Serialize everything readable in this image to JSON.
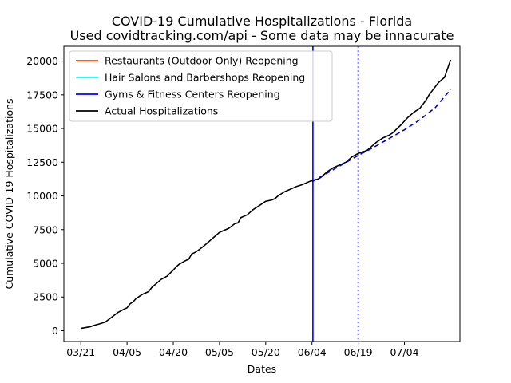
{
  "chart_data": {
    "type": "line",
    "title": "COVID-19 Cumulative Hospitalizations - Florida",
    "subtitle": "Used covidtracking.com/api - Some data may be innacurate",
    "xlabel": "Dates",
    "ylabel": "Cumulative COVID-19 Hospitalizations",
    "x_ticks": [
      {
        "label": "03/21",
        "day": 0
      },
      {
        "label": "04/05",
        "day": 15
      },
      {
        "label": "04/20",
        "day": 30
      },
      {
        "label": "05/05",
        "day": 45
      },
      {
        "label": "05/20",
        "day": 60
      },
      {
        "label": "06/04",
        "day": 75
      },
      {
        "label": "06/19",
        "day": 90
      },
      {
        "label": "07/04",
        "day": 105
      }
    ],
    "xlim": [
      -5.5,
      123
    ],
    "ylim": [
      -800,
      21100
    ],
    "y_ticks": [
      0,
      2500,
      5000,
      7500,
      10000,
      12500,
      15000,
      17500,
      20000
    ],
    "legend_position": "upper-left",
    "legend": [
      {
        "label": "Restaurants (Outdoor Only) Reopening",
        "color": "#ff4500"
      },
      {
        "label": "Hair Salons and Barbershops Reopening",
        "color": "#00ffff"
      },
      {
        "label": "Gyms & Fitness Centers Reopening",
        "color": "#0000ff"
      },
      {
        "label": "Actual Hospitalizations",
        "color": "#000000"
      }
    ],
    "vertical_lines": [
      {
        "day": 75.3,
        "color": "#0000ff",
        "style": "solid"
      },
      {
        "day": 90,
        "color": "#0000ff",
        "style": "dotted"
      }
    ],
    "series": [
      {
        "name": "Actual Hospitalizations",
        "color": "#000000",
        "style": "solid",
        "x": [
          0,
          3,
          4,
          6,
          8,
          10,
          12,
          14,
          15,
          16,
          17,
          18,
          20,
          22,
          23,
          24,
          25,
          26,
          28,
          30,
          31,
          32,
          34,
          35,
          36,
          37,
          38,
          40,
          42,
          43,
          44,
          45,
          46,
          48,
          50,
          51,
          52,
          54,
          55,
          56,
          58,
          60,
          62,
          63,
          64,
          66,
          68,
          70,
          72,
          74,
          75,
          76,
          77,
          78,
          80,
          82,
          84,
          86,
          88,
          90,
          92,
          93,
          94,
          96,
          98,
          100,
          101,
          102,
          104,
          106,
          108,
          110,
          112,
          113,
          116,
          118,
          120
        ],
        "y": [
          170,
          290,
          380,
          500,
          650,
          1000,
          1350,
          1600,
          1700,
          2000,
          2150,
          2400,
          2700,
          2900,
          3200,
          3400,
          3600,
          3800,
          4050,
          4500,
          4750,
          4950,
          5200,
          5300,
          5700,
          5800,
          5950,
          6300,
          6700,
          6900,
          7100,
          7300,
          7400,
          7600,
          7950,
          8000,
          8400,
          8600,
          8800,
          9000,
          9300,
          9600,
          9700,
          9800,
          10000,
          10300,
          10500,
          10700,
          10850,
          11050,
          11150,
          11200,
          11250,
          11400,
          11800,
          12100,
          12300,
          12500,
          12900,
          13150,
          13300,
          13400,
          13600,
          14000,
          14300,
          14500,
          14650,
          14850,
          15300,
          15800,
          16200,
          16500,
          17100,
          17500,
          18400,
          18800,
          20100
        ]
      },
      {
        "name": "",
        "color": "#0000cc",
        "style": "dashed",
        "x": [
          75,
          80,
          85,
          90,
          95,
          100,
          105,
          110,
          115,
          120
        ],
        "y": [
          11050,
          11700,
          12350,
          13000,
          13600,
          14250,
          14900,
          15650,
          16550,
          17900
        ]
      }
    ]
  }
}
